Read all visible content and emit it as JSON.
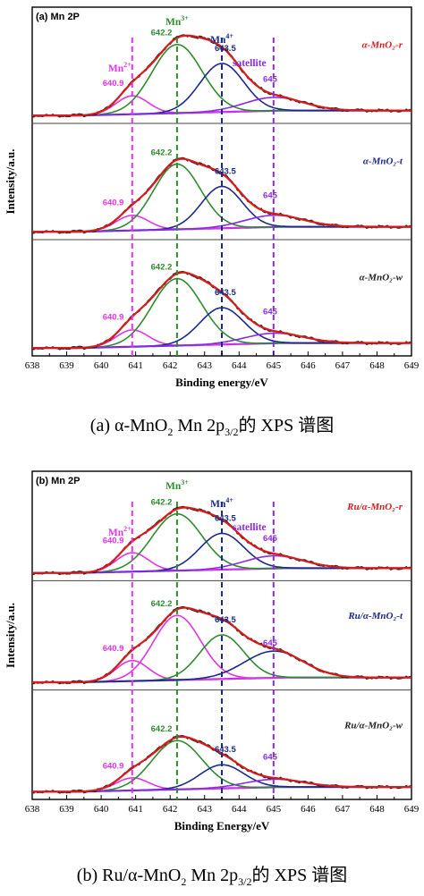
{
  "colors": {
    "mn2": "#e234e2",
    "mn3": "#2e8b2e",
    "mn4": "#1b2a8a",
    "sat": "#8a2be2",
    "fit": "#d81b1b",
    "bg": "#6b2bd8",
    "data": "#222222"
  },
  "chart_data": [
    {
      "type": "line",
      "panel_tag": "(a)",
      "panel_title": "Mn 2P",
      "xlabel": "Binding energy/eV",
      "ylabel": "Intensity/a.u.",
      "xlim": [
        638,
        649
      ],
      "x_ticks": [
        "638",
        "639",
        "640",
        "641",
        "642",
        "643",
        "644",
        "645",
        "646",
        "647",
        "648",
        "649"
      ],
      "caption": "(a) α-MnO₂ Mn 2p₃/₂ 的 XPS 谱图",
      "caption_parts": {
        "pre": "(a) α-MnO",
        "sub1": "2",
        "mid": " Mn 2p",
        "sub2": "3/2",
        "post": "的 XPS 谱图"
      },
      "peak_labels": [
        {
          "text": "Mn",
          "sup": "2+",
          "x": 640.9,
          "color": "mn2"
        },
        {
          "text": "Mn",
          "sup": "3+",
          "x": 642.2,
          "color": "mn3"
        },
        {
          "text": "Mn",
          "sup": "4+",
          "x": 643.5,
          "color": "mn4"
        },
        {
          "text": "satellite",
          "sup": "",
          "x": 645.0,
          "color": "sat"
        }
      ],
      "vlines": [
        {
          "x": 640.9,
          "color": "mn2"
        },
        {
          "x": 642.2,
          "color": "mn3"
        },
        {
          "x": 643.5,
          "color": "mn4"
        },
        {
          "x": 645.0,
          "color": "sat"
        }
      ],
      "subpanels": [
        {
          "sample": "α-MnO₂-r",
          "sample_color": "fit",
          "annotations": [
            "640.9",
            "642.2",
            "643.5",
            "645"
          ],
          "peaks": [
            {
              "name": "Mn2+",
              "center": 640.9,
              "height": 0.22,
              "fwhm": 1.1,
              "color": "mn2"
            },
            {
              "name": "Mn3+",
              "center": 642.2,
              "height": 0.82,
              "fwhm": 1.7,
              "color": "mn3"
            },
            {
              "name": "Mn4+",
              "center": 643.5,
              "height": 0.58,
              "fwhm": 1.5,
              "color": "mn4"
            },
            {
              "name": "satellite",
              "center": 645.0,
              "height": 0.16,
              "fwhm": 2.0,
              "color": "sat"
            }
          ]
        },
        {
          "sample": "α-MnO₂-t",
          "sample_color": "mn4",
          "annotations": [
            "640.9",
            "642.2",
            "643.5",
            "645"
          ],
          "peaks": [
            {
              "name": "Mn2+",
              "center": 640.9,
              "height": 0.18,
              "fwhm": 1.1,
              "color": "mn2"
            },
            {
              "name": "Mn3+",
              "center": 642.2,
              "height": 0.78,
              "fwhm": 1.6,
              "color": "mn3"
            },
            {
              "name": "Mn4+",
              "center": 643.5,
              "height": 0.5,
              "fwhm": 1.4,
              "color": "mn4"
            },
            {
              "name": "satellite",
              "center": 645.0,
              "height": 0.14,
              "fwhm": 2.0,
              "color": "sat"
            }
          ]
        },
        {
          "sample": "α-MnO₂-w",
          "sample_color": "data",
          "annotations": [
            "640.9",
            "642.2",
            "643.5",
            "645"
          ],
          "peaks": [
            {
              "name": "Mn2+",
              "center": 640.9,
              "height": 0.2,
              "fwhm": 1.1,
              "color": "mn2"
            },
            {
              "name": "Mn3+",
              "center": 642.2,
              "height": 0.8,
              "fwhm": 1.7,
              "color": "mn3"
            },
            {
              "name": "Mn4+",
              "center": 643.5,
              "height": 0.44,
              "fwhm": 1.5,
              "color": "mn4"
            },
            {
              "name": "satellite",
              "center": 645.0,
              "height": 0.12,
              "fwhm": 2.0,
              "color": "sat"
            }
          ]
        }
      ]
    },
    {
      "type": "line",
      "panel_tag": "(b)",
      "panel_title": "Mn 2P",
      "xlabel": "Binding Energy/eV",
      "ylabel": "Intensity/a.u.",
      "xlim": [
        638,
        649
      ],
      "x_ticks": [
        "638",
        "639",
        "640",
        "641",
        "642",
        "643",
        "644",
        "645",
        "646",
        "647",
        "648",
        "649"
      ],
      "caption": "(b) Ru/α-MnO₂ Mn 2p₃/₂ 的 XPS 谱图",
      "caption_parts": {
        "pre": "(b) Ru/α-MnO",
        "sub1": "2",
        "mid": " Mn 2p",
        "sub2": "3/2",
        "post": "的 XPS 谱图"
      },
      "peak_labels": [
        {
          "text": "Mn",
          "sup": "2+",
          "x": 640.9,
          "color": "mn2"
        },
        {
          "text": "Mn",
          "sup": "3+",
          "x": 642.2,
          "color": "mn3"
        },
        {
          "text": "Mn",
          "sup": "4+",
          "x": 643.5,
          "color": "mn4"
        },
        {
          "text": "satellite",
          "sup": "",
          "x": 645.0,
          "color": "sat"
        }
      ],
      "vlines": [
        {
          "x": 640.9,
          "color": "mn2"
        },
        {
          "x": 642.2,
          "color": "mn3"
        },
        {
          "x": 643.5,
          "color": "mn4"
        },
        {
          "x": 645.0,
          "color": "sat"
        }
      ],
      "subpanels": [
        {
          "sample": "Ru/α-MnO₂-r",
          "sample_color": "fit",
          "annotations": [
            "640.9",
            "642.2",
            "643.5",
            "645"
          ],
          "peaks": [
            {
              "name": "Mn2+",
              "center": 640.9,
              "height": 0.24,
              "fwhm": 1.1,
              "color": "mn2"
            },
            {
              "name": "Mn3+",
              "center": 642.2,
              "height": 0.72,
              "fwhm": 1.7,
              "color": "mn3"
            },
            {
              "name": "Mn4+",
              "center": 643.5,
              "height": 0.46,
              "fwhm": 1.5,
              "color": "mn4"
            },
            {
              "name": "satellite",
              "center": 645.0,
              "height": 0.16,
              "fwhm": 2.0,
              "color": "sat"
            }
          ]
        },
        {
          "sample": "Ru/α-MnO₂-t",
          "sample_color": "mn4",
          "annotations": [
            "640.9",
            "642.2",
            "643.5",
            "645"
          ],
          "peaks": [
            {
              "name": "Mn2+",
              "center": 640.9,
              "height": 0.26,
              "fwhm": 1.1,
              "color": "mn2"
            },
            {
              "name": "Mn3+",
              "center": 642.2,
              "height": 0.82,
              "fwhm": 1.6,
              "color": "mn2"
            },
            {
              "name": "Mn4+",
              "center": 643.5,
              "height": 0.56,
              "fwhm": 1.5,
              "color": "mn3"
            },
            {
              "name": "satellite",
              "center": 645.0,
              "height": 0.34,
              "fwhm": 2.0,
              "color": "mn4"
            }
          ]
        },
        {
          "sample": "Ru/α-MnO₂-w",
          "sample_color": "data",
          "annotations": [
            "640.9",
            "642.2",
            "643.5",
            "645"
          ],
          "peaks": [
            {
              "name": "Mn2+",
              "center": 640.9,
              "height": 0.16,
              "fwhm": 1.1,
              "color": "mn2"
            },
            {
              "name": "Mn3+",
              "center": 642.2,
              "height": 0.62,
              "fwhm": 1.7,
              "color": "mn3"
            },
            {
              "name": "Mn4+",
              "center": 643.5,
              "height": 0.3,
              "fwhm": 1.5,
              "color": "mn4"
            },
            {
              "name": "satellite",
              "center": 645.0,
              "height": 0.1,
              "fwhm": 2.0,
              "color": "sat"
            }
          ]
        }
      ]
    }
  ]
}
